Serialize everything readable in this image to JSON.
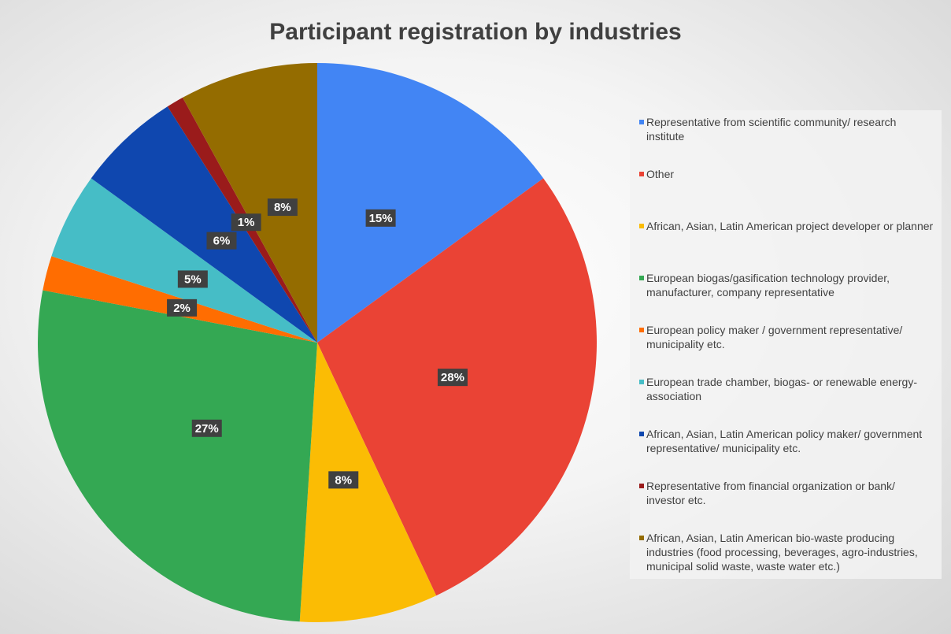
{
  "chart_data": {
    "type": "pie",
    "title": "Participant registration by industries",
    "categories": [
      "Representative from scientific community/ research institute",
      "Other",
      "African, Asian, Latin American project developer or planner",
      "European biogas/gasification technology provider, manufacturer, company representative",
      "European policy maker / government representative/ municipality etc.",
      "European trade chamber, biogas- or renewable energy- association",
      "African, Asian, Latin American policy maker/ government representative/ municipality etc.",
      "Representative from financial organization or bank/ investor etc.",
      "African, Asian, Latin American bio-waste producing industries (food processing, beverages, agro-industries, municipal solid waste, waste water etc.)"
    ],
    "values": [
      15,
      28,
      8,
      27,
      2,
      5,
      6,
      1,
      8
    ],
    "value_labels": [
      "15%",
      "28%",
      "8%",
      "27%",
      "2%",
      "5%",
      "6%",
      "1%",
      "8%"
    ],
    "colors": [
      "#4285f4",
      "#ea4335",
      "#fbbc04",
      "#34a853",
      "#ff6d01",
      "#46bdc6",
      "#0f47af",
      "#9a1b1b",
      "#946c00"
    ],
    "legend": "right"
  }
}
